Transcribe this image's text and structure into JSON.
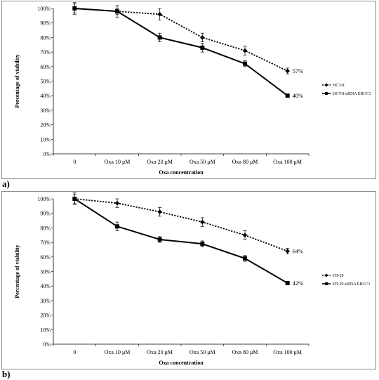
{
  "chart_data": [
    {
      "type": "line",
      "panel_label": "a)",
      "xlabel": "Oxa concentration",
      "ylabel": "Percentage of viability",
      "ylim": [
        0,
        100
      ],
      "y_ticks": [
        "0%",
        "10%",
        "20%",
        "30%",
        "40%",
        "50%",
        "60%",
        "70%",
        "80%",
        "90%",
        "100%"
      ],
      "categories": [
        "0",
        "Oxa 10 μM",
        "Oxa 20 μM",
        "Oxa 50 μM",
        "Oxa 80 μM",
        "Oxa 100 μM"
      ],
      "legend_position": "right",
      "series": [
        {
          "name": "HCT-8",
          "style": "dotted",
          "marker": "diamond",
          "values": [
            100,
            98,
            96,
            80,
            71,
            57
          ],
          "errors": [
            3,
            2,
            4,
            3,
            3,
            2
          ],
          "end_label": "57%"
        },
        {
          "name": "HCT-8 siRNA ERCC1",
          "style": "solid",
          "marker": "square",
          "values": [
            100,
            98,
            80,
            73,
            62,
            40
          ],
          "errors": [
            4,
            4,
            3,
            3,
            2,
            1
          ],
          "end_label": "40%"
        }
      ]
    },
    {
      "type": "line",
      "panel_label": "b)",
      "xlabel": "Oxa concentration",
      "ylabel": "Percentage of viability",
      "ylim": [
        0,
        100
      ],
      "y_ticks": [
        "0%",
        "10%",
        "20%",
        "30%",
        "40%",
        "50%",
        "60%",
        "70%",
        "80%",
        "90%",
        "100%"
      ],
      "categories": [
        "0",
        "Oxa 10 μM",
        "Oxa 20 μM",
        "Oxa 50 μM",
        "Oxa 80 μM",
        "Oxa 100 μM"
      ],
      "legend_position": "right",
      "series": [
        {
          "name": "HT-29",
          "style": "dotted",
          "marker": "diamond",
          "values": [
            100,
            97,
            91,
            84,
            75,
            64
          ],
          "errors": [
            4,
            3,
            3,
            3,
            3,
            2
          ],
          "end_label": "64%"
        },
        {
          "name": "HT-29 siRNA ERCC1",
          "style": "solid",
          "marker": "square",
          "values": [
            100,
            81,
            72,
            69,
            59,
            42
          ],
          "errors": [
            3,
            3,
            2,
            2,
            2,
            1
          ],
          "end_label": "42%"
        }
      ]
    }
  ]
}
